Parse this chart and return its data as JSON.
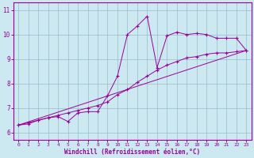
{
  "title": "",
  "xlabel": "Windchill (Refroidissement éolien,°C)",
  "ylabel": "",
  "bg_color": "#cce8f0",
  "line_color": "#990099",
  "grid_color": "#99bbcc",
  "x_ticks": [
    0,
    1,
    2,
    3,
    4,
    5,
    6,
    7,
    8,
    9,
    10,
    11,
    12,
    13,
    14,
    15,
    16,
    17,
    18,
    19,
    20,
    21,
    22,
    23
  ],
  "y_ticks": [
    6,
    7,
    8,
    9,
    10,
    11
  ],
  "xlim": [
    -0.5,
    23.5
  ],
  "ylim": [
    5.7,
    11.3
  ],
  "series1_x": [
    0,
    1,
    2,
    3,
    4,
    5,
    6,
    7,
    8,
    9,
    10,
    11,
    12,
    13,
    14,
    15,
    16,
    17,
    18,
    19,
    20,
    21,
    22,
    23
  ],
  "series1_y": [
    6.3,
    6.35,
    6.5,
    6.6,
    6.65,
    6.45,
    6.8,
    6.85,
    6.85,
    7.5,
    8.3,
    10.0,
    10.35,
    10.75,
    8.65,
    9.95,
    10.1,
    10.0,
    10.05,
    10.0,
    9.85,
    9.85,
    9.85,
    9.35
  ],
  "series2_x": [
    0,
    1,
    2,
    3,
    4,
    5,
    6,
    7,
    8,
    9,
    10,
    11,
    12,
    13,
    14,
    15,
    16,
    17,
    18,
    19,
    20,
    21,
    22,
    23
  ],
  "series2_y": [
    6.3,
    6.4,
    6.5,
    6.6,
    6.7,
    6.8,
    6.9,
    7.0,
    7.1,
    7.25,
    7.55,
    7.75,
    8.05,
    8.3,
    8.55,
    8.75,
    8.9,
    9.05,
    9.1,
    9.2,
    9.25,
    9.25,
    9.3,
    9.35
  ],
  "series3_x": [
    0,
    23
  ],
  "series3_y": [
    6.3,
    9.35
  ]
}
